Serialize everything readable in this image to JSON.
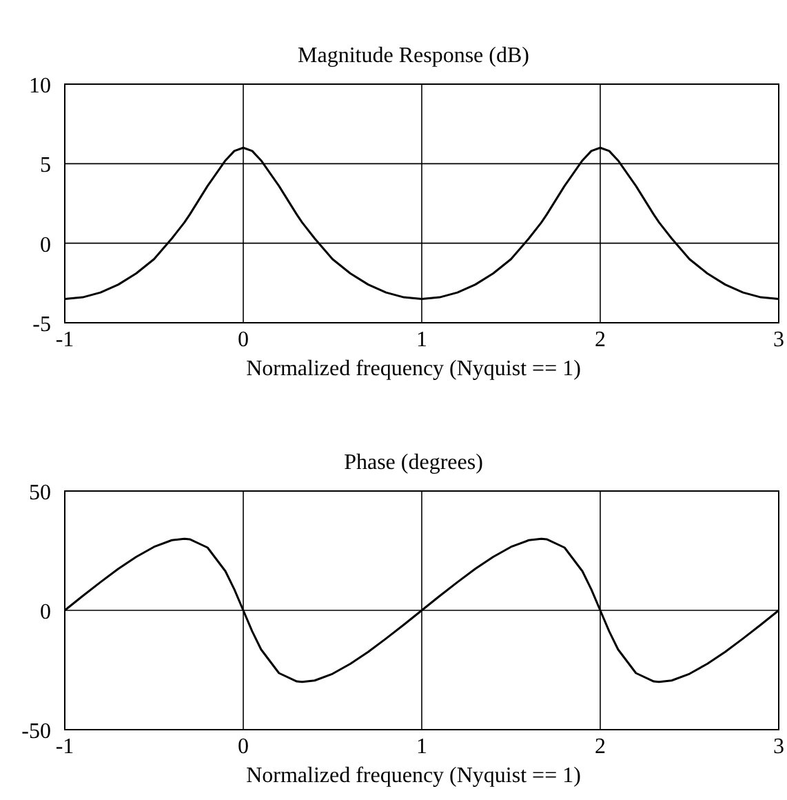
{
  "chart_data": [
    {
      "type": "line",
      "title": "Magnitude Response (dB)",
      "xlabel": "Normalized frequency (Nyquist == 1)",
      "xlim": [
        -1,
        3
      ],
      "xticks": [
        -1,
        0,
        1,
        2,
        3
      ],
      "ylim": [
        -5,
        10
      ],
      "yticks": [
        -5,
        0,
        5,
        10
      ],
      "grid": true,
      "series": [
        {
          "color": "#000000",
          "x": [
            -1,
            -0.9,
            -0.8,
            -0.7,
            -0.6,
            -0.5,
            -0.4,
            -0.33,
            -0.3,
            -0.2,
            -0.1,
            -0.05,
            0,
            0.05,
            0.1,
            0.2,
            0.3,
            0.33,
            0.4,
            0.5,
            0.6,
            0.7,
            0.8,
            0.9,
            1,
            1.1,
            1.2,
            1.3,
            1.4,
            1.5,
            1.6,
            1.67,
            1.7,
            1.8,
            1.9,
            1.95,
            2,
            2.05,
            2.1,
            2.2,
            2.3,
            2.33,
            2.4,
            2.5,
            2.6,
            2.7,
            2.8,
            2.9,
            3
          ],
          "values": [
            -3.5,
            -3.4,
            -3.1,
            -2.6,
            -1.9,
            -1,
            0.3,
            1.3,
            1.8,
            3.6,
            5.2,
            5.8,
            6,
            5.8,
            5.2,
            3.6,
            1.8,
            1.3,
            0.3,
            -1,
            -1.9,
            -2.6,
            -3.1,
            -3.4,
            -3.5,
            -3.4,
            -3.1,
            -2.6,
            -1.9,
            -1,
            0.3,
            1.3,
            1.8,
            3.6,
            5.2,
            5.8,
            6,
            5.8,
            5.2,
            3.6,
            1.8,
            1.3,
            0.3,
            -1,
            -1.9,
            -2.6,
            -3.1,
            -3.4,
            -3.5
          ]
        }
      ]
    },
    {
      "type": "line",
      "title": "Phase (degrees)",
      "xlabel": "Normalized frequency (Nyquist == 1)",
      "xlim": [
        -1,
        3
      ],
      "xticks": [
        -1,
        0,
        1,
        2,
        3
      ],
      "ylim": [
        -50,
        50
      ],
      "yticks": [
        -50,
        0,
        50
      ],
      "grid": true,
      "series": [
        {
          "color": "#000000",
          "x": [
            -1,
            -0.9,
            -0.8,
            -0.7,
            -0.6,
            -0.5,
            -0.4,
            -0.33,
            -0.3,
            -0.2,
            -0.1,
            -0.05,
            0,
            0.05,
            0.1,
            0.2,
            0.3,
            0.33,
            0.4,
            0.5,
            0.6,
            0.7,
            0.8,
            0.9,
            1,
            1.1,
            1.2,
            1.3,
            1.4,
            1.5,
            1.6,
            1.67,
            1.7,
            1.8,
            1.9,
            1.95,
            2,
            2.05,
            2.1,
            2.2,
            2.3,
            2.33,
            2.4,
            2.5,
            2.6,
            2.7,
            2.8,
            2.9,
            3
          ],
          "values": [
            0,
            6,
            11.8,
            17.4,
            22.4,
            26.6,
            29.4,
            30,
            29.8,
            26.3,
            16.4,
            8.8,
            0,
            -8.8,
            -16.4,
            -26.3,
            -29.8,
            -30,
            -29.4,
            -26.6,
            -22.4,
            -17.4,
            -11.8,
            -6,
            0,
            6,
            11.8,
            17.4,
            22.4,
            26.6,
            29.4,
            30,
            29.8,
            26.3,
            16.4,
            8.8,
            0,
            -8.8,
            -16.4,
            -26.3,
            -29.8,
            -30,
            -29.4,
            -26.6,
            -22.4,
            -17.4,
            -11.8,
            -6,
            0
          ]
        }
      ]
    }
  ]
}
